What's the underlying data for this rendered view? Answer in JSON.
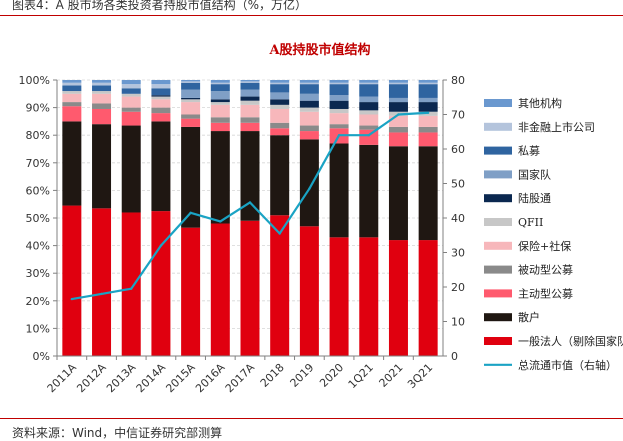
{
  "figure_caption": "图表4：A 股市场各类投资者持股市值结构（%，万亿）",
  "source_note": "资料来源：Wind，中信证券研究部测算",
  "chart_data": {
    "type": "bar",
    "stacked": true,
    "title": "A股持股市值结构",
    "categories": [
      "2011A",
      "2012A",
      "2013A",
      "2014A",
      "2015A",
      "2016A",
      "2017A",
      "2018",
      "2019",
      "2020",
      "1Q21",
      "2021",
      "3Q21"
    ],
    "left_axis": {
      "ylim": [
        0,
        100
      ],
      "ticks": [
        "0%",
        "10%",
        "20%",
        "30%",
        "40%",
        "50%",
        "60%",
        "70%",
        "80%",
        "90%",
        "100%"
      ]
    },
    "right_axis": {
      "ylim": [
        0,
        80
      ],
      "ticks": [
        "0",
        "10",
        "20",
        "30",
        "40",
        "50",
        "60",
        "70",
        "80"
      ]
    },
    "series": [
      {
        "name": "一般法人（剔除国家队）",
        "color": "#e0000f",
        "values": [
          54.5,
          53.5,
          52,
          52.5,
          46.5,
          48,
          49,
          51,
          47,
          43,
          43,
          42,
          42
        ]
      },
      {
        "name": "散户",
        "color": "#1f1712",
        "values": [
          30.5,
          30.5,
          31.5,
          32.5,
          36.5,
          33.5,
          32.5,
          29,
          31.5,
          34,
          33.5,
          34,
          34
        ]
      },
      {
        "name": "主动型公募",
        "color": "#ff5a6e",
        "values": [
          5.5,
          5.5,
          5,
          3,
          3,
          3,
          3,
          2.5,
          3,
          5.5,
          5.5,
          5,
          5
        ]
      },
      {
        "name": "被动型公募",
        "color": "#8a8a8a",
        "values": [
          1.5,
          2,
          1.5,
          2,
          1.5,
          2,
          2,
          2,
          2,
          1.5,
          1.5,
          2,
          2
        ]
      },
      {
        "name": "保险+社保",
        "color": "#f7b7bb",
        "values": [
          3,
          3.5,
          4,
          3,
          4.5,
          4.5,
          4.5,
          5,
          5,
          4,
          4,
          4,
          4
        ]
      },
      {
        "name": "QFII",
        "color": "#c7c7c7",
        "values": [
          1,
          1,
          1,
          1,
          1,
          1,
          1.5,
          1.5,
          1.5,
          1.5,
          1.5,
          1.5,
          1.5
        ]
      },
      {
        "name": "陆股通",
        "color": "#0b2850",
        "values": [
          0,
          0,
          0,
          0.5,
          0.5,
          1,
          1.5,
          2,
          2.5,
          3,
          3,
          3.5,
          3.5
        ]
      },
      {
        "name": "国家队",
        "color": "#7f9fc6",
        "values": [
          0,
          0,
          0,
          0,
          3,
          3,
          2.5,
          2.5,
          2.5,
          2,
          2,
          1.5,
          1.5
        ]
      },
      {
        "name": "私募",
        "color": "#2f64a0",
        "values": [
          2,
          2,
          2,
          2.5,
          2.5,
          2.5,
          2.5,
          3,
          3.5,
          4,
          4.5,
          5,
          5
        ]
      },
      {
        "name": "非金融上市公司",
        "color": "#b4c4dc",
        "values": [
          1,
          1,
          1.5,
          1.5,
          0.5,
          0.5,
          0.5,
          0.5,
          0.5,
          0.5,
          0.5,
          0.5,
          0.5
        ]
      },
      {
        "name": "其他机构",
        "color": "#6a98cf",
        "values": [
          1,
          1,
          1.5,
          1.5,
          0.5,
          1,
          0.5,
          1,
          1,
          1,
          1,
          1,
          1
        ]
      }
    ],
    "line_series": {
      "name": "总流通市值（右轴）",
      "color": "#1aa3c4",
      "values": [
        16.5,
        18,
        19.5,
        32,
        41.5,
        39,
        44.5,
        35.5,
        48.5,
        64,
        64,
        70,
        70.5
      ]
    },
    "legend_position": "right"
  }
}
